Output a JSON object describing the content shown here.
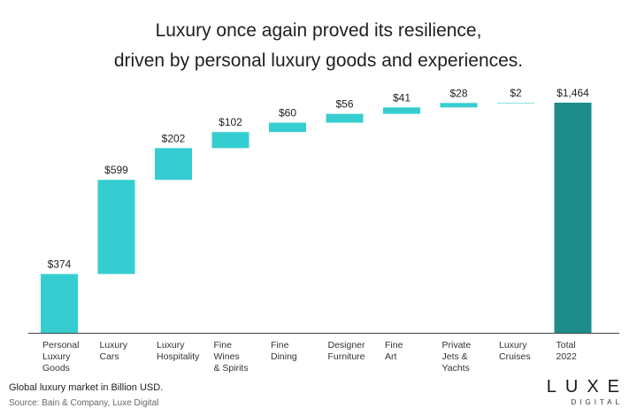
{
  "title_lines": [
    "Luxury once again proved its resilience,",
    "driven by personal luxury goods and experiences."
  ],
  "footer": {
    "note": "Global luxury market in Billion USD.",
    "source": "Source: Bain & Company, Luxe Digital"
  },
  "logo": {
    "word": "LUXE",
    "subtitle": "DIGITAL"
  },
  "colors": {
    "bar": "#36cdd0",
    "total": "#1e8c8a",
    "axis": "#444444"
  },
  "chart_data": {
    "type": "bar",
    "subtype": "waterfall",
    "categories": [
      [
        "Personal",
        "Luxury",
        "Goods"
      ],
      [
        "Luxury",
        "Cars"
      ],
      [
        "Luxury",
        "Hospitality"
      ],
      [
        "Fine",
        "Wines",
        "& Spirits"
      ],
      [
        "Fine",
        "Dining"
      ],
      [
        "Designer",
        "Furniture"
      ],
      [
        "Fine",
        "Art"
      ],
      [
        "Private",
        "Jets &",
        "Yachts"
      ],
      [
        "Luxury",
        "Cruises"
      ],
      [
        "Total",
        "2022"
      ]
    ],
    "values": [
      374,
      599,
      202,
      102,
      60,
      56,
      41,
      28,
      2,
      1464
    ],
    "labels": [
      "$374",
      "$599",
      "$202",
      "$102",
      "$60",
      "$56",
      "$41",
      "$28",
      "$2",
      "$1,464"
    ],
    "is_total": [
      false,
      false,
      false,
      false,
      false,
      false,
      false,
      false,
      false,
      true
    ],
    "ylim": [
      0,
      1464
    ]
  }
}
